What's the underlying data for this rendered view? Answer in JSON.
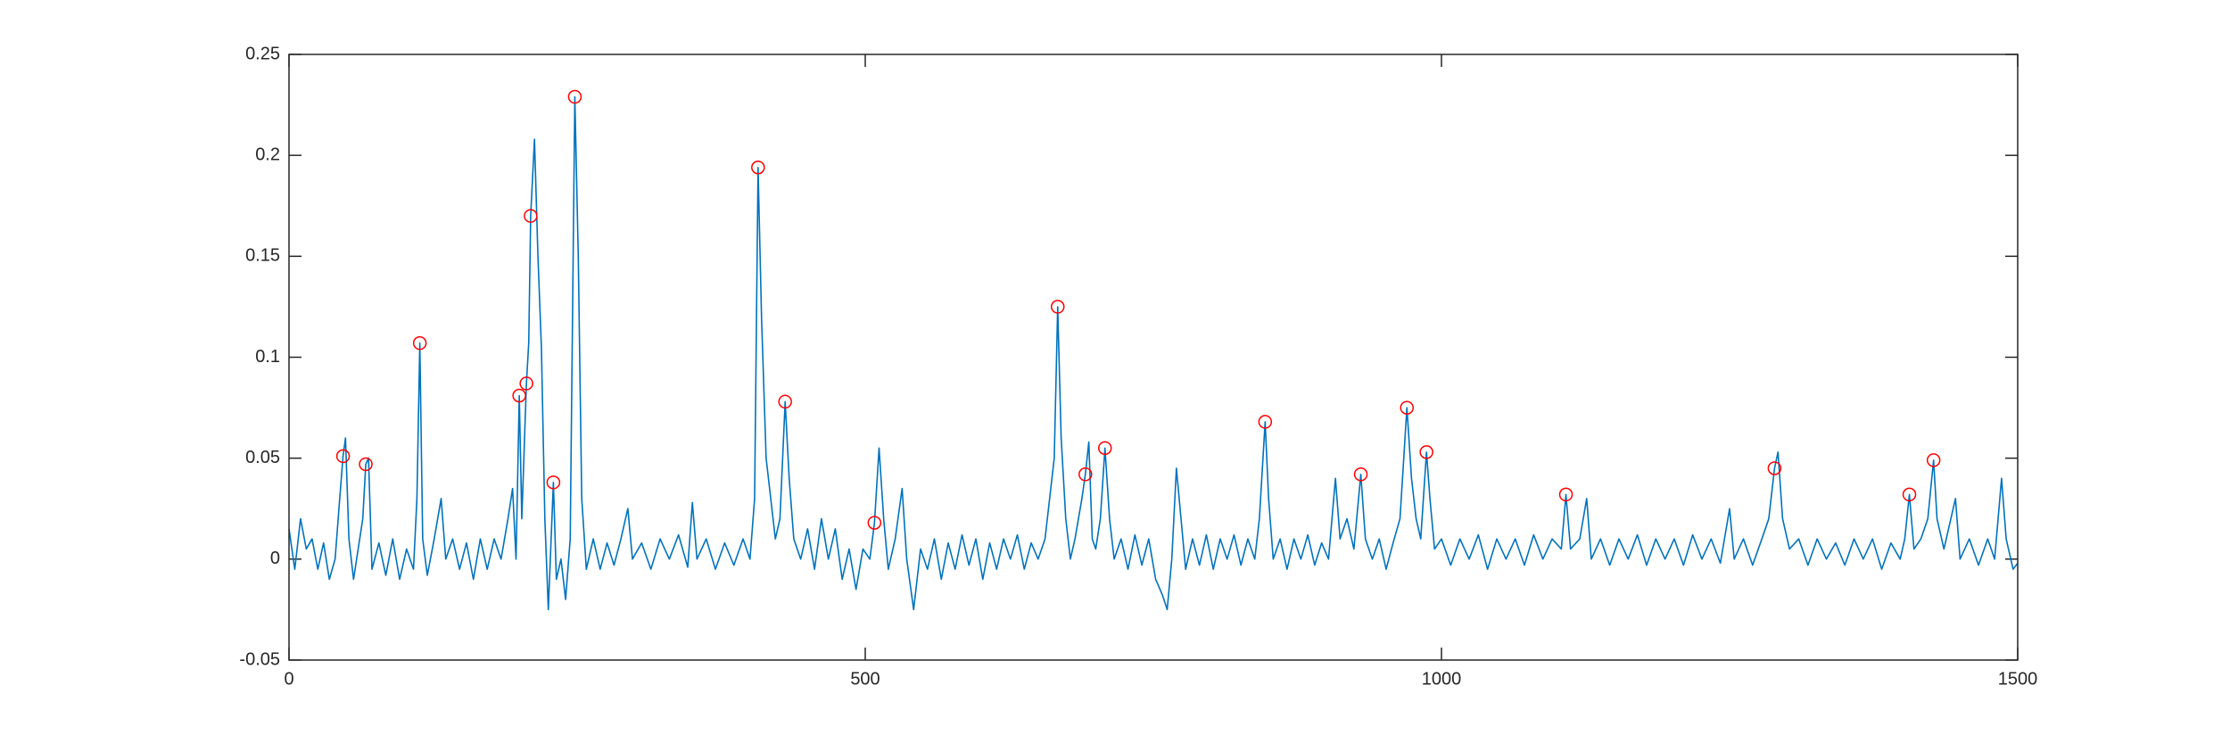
{
  "chart_data": {
    "type": "line",
    "xlim": [
      0,
      1500
    ],
    "xticks": [
      0,
      500,
      1000,
      1500
    ],
    "ylim": [
      -0.05,
      0.25
    ],
    "yticks": [
      -0.05,
      0,
      0.05,
      0.1,
      0.15,
      0.2,
      0.25
    ],
    "grid": false,
    "series": [
      {
        "color": "#0072bd",
        "style": "line",
        "x": [
          0,
          5,
          10,
          15,
          20,
          25,
          30,
          35,
          40,
          44,
          46.9,
          49,
          52,
          56,
          60,
          64,
          66.6,
          69,
          72,
          78,
          84,
          90,
          96,
          102,
          108,
          111,
          113.5,
          116,
          120,
          126,
          132,
          136,
          142,
          148,
          154,
          160,
          166,
          172,
          178,
          184,
          190,
          194,
          197,
          199.8,
          202,
          206,
          208,
          209.7,
          213,
          216,
          219,
          222,
          225,
          229.4,
          232,
          236,
          240,
          244,
          248,
          251,
          254,
          258,
          264,
          270,
          276,
          282,
          288,
          294,
          298,
          306,
          314,
          322,
          330,
          338,
          346,
          350,
          354,
          362,
          370,
          378,
          386,
          394,
          400,
          404,
          407,
          410,
          414,
          418,
          422,
          426,
          430.5,
          434,
          438,
          444,
          450,
          456,
          462,
          468,
          474,
          480,
          486,
          492,
          498,
          504,
          508,
          512,
          516,
          520,
          526,
          532,
          536,
          542,
          548,
          554,
          560,
          566,
          572,
          578,
          584,
          590,
          596,
          602,
          608,
          614,
          620,
          626,
          632,
          638,
          644,
          650,
          656,
          660,
          664,
          667,
          670,
          674,
          678,
          682,
          688,
          691,
          694,
          697,
          700,
          704,
          708,
          712,
          716,
          722,
          728,
          734,
          740,
          746,
          752,
          758,
          762,
          766,
          770,
          774,
          778,
          784,
          790,
          796,
          802,
          808,
          814,
          820,
          826,
          832,
          838,
          842,
          847,
          850,
          854,
          860,
          866,
          872,
          878,
          884,
          890,
          896,
          902,
          908,
          912,
          918,
          924,
          930,
          934,
          940,
          946,
          952,
          958,
          964,
          970,
          974,
          978,
          982,
          987,
          990,
          994,
          1000,
          1008,
          1016,
          1024,
          1032,
          1040,
          1048,
          1056,
          1064,
          1072,
          1080,
          1088,
          1096,
          1104,
          1108,
          1112,
          1120,
          1126,
          1130,
          1138,
          1146,
          1154,
          1162,
          1170,
          1178,
          1186,
          1194,
          1202,
          1210,
          1218,
          1226,
          1234,
          1242,
          1250,
          1254,
          1262,
          1270,
          1278,
          1284,
          1289,
          1292,
          1296,
          1302,
          1310,
          1318,
          1326,
          1334,
          1342,
          1350,
          1358,
          1366,
          1374,
          1382,
          1390,
          1398,
          1402,
          1406,
          1410,
          1416,
          1422,
          1427,
          1430,
          1436,
          1442,
          1446,
          1450,
          1458,
          1466,
          1474,
          1480,
          1486,
          1490,
          1496,
          1500
        ],
        "values": [
          0.015,
          -0.005,
          0.02,
          0.005,
          0.01,
          -0.005,
          0.008,
          -0.01,
          0,
          0.03,
          0.051,
          0.06,
          0.01,
          -0.01,
          0.005,
          0.02,
          0.047,
          0.05,
          -0.005,
          0.008,
          -0.008,
          0.01,
          -0.01,
          0.005,
          -0.005,
          0.03,
          0.107,
          0.01,
          -0.008,
          0.01,
          0.03,
          0,
          0.01,
          -0.005,
          0.008,
          -0.01,
          0.01,
          -0.005,
          0.01,
          0,
          0.02,
          0.035,
          0,
          0.081,
          0.02,
          0.087,
          0.107,
          0.17,
          0.208,
          0.15,
          0.105,
          0.02,
          -0.025,
          0.038,
          -0.01,
          0,
          -0.02,
          0.01,
          0.229,
          0.15,
          0.03,
          -0.005,
          0.01,
          -0.005,
          0.008,
          -0.003,
          0.01,
          0.025,
          0,
          0.008,
          -0.005,
          0.01,
          0,
          0.012,
          -0.004,
          0.028,
          0,
          0.01,
          -0.005,
          0.008,
          -0.003,
          0.01,
          0,
          0.03,
          0.194,
          0.12,
          0.05,
          0.03,
          0.01,
          0.02,
          0.078,
          0.04,
          0.01,
          0,
          0.015,
          -0.005,
          0.02,
          0,
          0.015,
          -0.01,
          0.005,
          -0.015,
          0.005,
          0,
          0.018,
          0.055,
          0.02,
          -0.005,
          0.01,
          0.035,
          0,
          -0.025,
          0.005,
          -0.005,
          0.01,
          -0.01,
          0.008,
          -0.005,
          0.012,
          -0.003,
          0.01,
          -0.01,
          0.008,
          -0.005,
          0.01,
          0,
          0.012,
          -0.005,
          0.008,
          0,
          0.01,
          0.03,
          0.05,
          0.125,
          0.06,
          0.02,
          0,
          0.01,
          0.03,
          0.042,
          0.058,
          0.01,
          0.005,
          0.02,
          0.055,
          0.02,
          0,
          0.01,
          -0.005,
          0.012,
          -0.003,
          0.01,
          -0.01,
          -0.018,
          -0.025,
          0,
          0.045,
          0.02,
          -0.005,
          0.01,
          -0.003,
          0.012,
          -0.005,
          0.01,
          0,
          0.012,
          -0.003,
          0.01,
          0,
          0.02,
          0.068,
          0.03,
          0,
          0.01,
          -0.005,
          0.01,
          0,
          0.012,
          -0.003,
          0.008,
          0,
          0.04,
          0.01,
          0.02,
          0.005,
          0.042,
          0.01,
          0,
          0.01,
          -0.005,
          0.008,
          0.02,
          0.075,
          0.04,
          0.02,
          0.01,
          0.053,
          0.03,
          0.005,
          0.01,
          -0.003,
          0.01,
          0,
          0.012,
          -0.005,
          0.01,
          0,
          0.01,
          -0.003,
          0.012,
          0,
          0.01,
          0.005,
          0.032,
          0.005,
          0.01,
          0.03,
          0,
          0.01,
          -0.003,
          0.01,
          0,
          0.012,
          -0.003,
          0.01,
          0,
          0.01,
          -0.003,
          0.012,
          0,
          0.01,
          -0.002,
          0.025,
          0,
          0.01,
          -0.003,
          0.01,
          0.02,
          0.045,
          0.053,
          0.02,
          0.005,
          0.01,
          -0.003,
          0.01,
          0,
          0.008,
          -0.003,
          0.01,
          0,
          0.01,
          -0.005,
          0.008,
          0,
          0.01,
          0.032,
          0.005,
          0.01,
          0.02,
          0.049,
          0.02,
          0.005,
          0.02,
          0.03,
          0,
          0.01,
          -0.003,
          0.01,
          0,
          0.04,
          0.01,
          -0.005,
          -0.002
        ]
      },
      {
        "color": "#ff0000",
        "style": "circle",
        "x": [
          46.9,
          66.6,
          113.5,
          199.8,
          206,
          209.7,
          229.4,
          248,
          407,
          430.5,
          508,
          667,
          691,
          708,
          847,
          930,
          970,
          987,
          1108,
          1289,
          1406,
          1427
        ],
        "values": [
          0.051,
          0.047,
          0.107,
          0.081,
          0.087,
          0.17,
          0.038,
          0.229,
          0.194,
          0.078,
          0.018,
          0.125,
          0.042,
          0.055,
          0.068,
          0.042,
          0.075,
          0.053,
          0.032,
          0.045,
          0.032,
          0.049
        ]
      }
    ]
  }
}
